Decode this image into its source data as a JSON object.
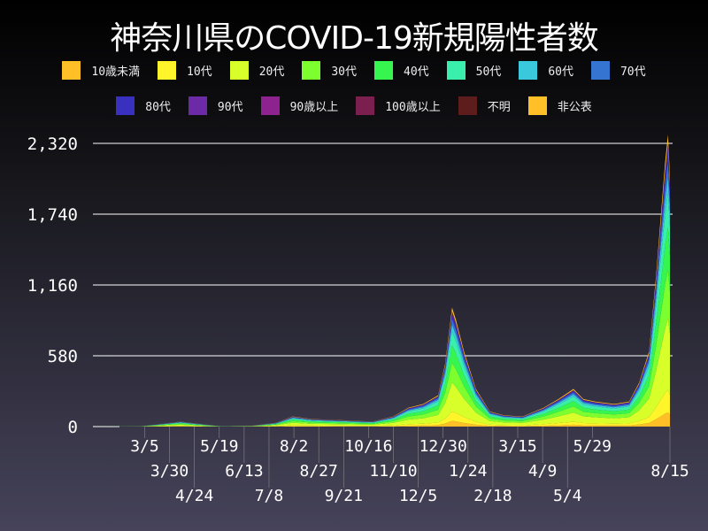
{
  "chart_data": {
    "type": "area",
    "stacked": true,
    "title": "神奈川県のCOVID-19新規陽性者数",
    "xlabel": "",
    "ylabel": "",
    "ylim": [
      0,
      2320
    ],
    "yticks": [
      "0",
      "580",
      "1,160",
      "1,740",
      "2,320"
    ],
    "ytick_values": [
      0,
      580,
      1160,
      1740,
      2320
    ],
    "xticks": [
      "3/5",
      "3/30",
      "4/24",
      "5/19",
      "6/13",
      "7/8",
      "8/2",
      "8/27",
      "9/21",
      "10/16",
      "11/10",
      "12/5",
      "12/30",
      "1/24",
      "2/18",
      "3/15",
      "4/9",
      "5/4",
      "5/29",
      "8/15"
    ],
    "xtick_dates": [
      "2020-03-05",
      "2020-03-30",
      "2020-04-24",
      "2020-05-19",
      "2020-06-13",
      "2020-07-08",
      "2020-08-02",
      "2020-08-27",
      "2020-09-21",
      "2020-10-16",
      "2020-11-10",
      "2020-12-05",
      "2020-12-30",
      "2021-01-24",
      "2021-02-18",
      "2021-03-15",
      "2021-04-09",
      "2021-05-04",
      "2021-05-29",
      "2021-08-15"
    ],
    "grid": "horizontal",
    "legend_position": "top",
    "x": [
      "2020-01-13",
      "2020-03-01",
      "2020-04-10",
      "2020-04-25",
      "2020-05-20",
      "2020-06-20",
      "2020-07-15",
      "2020-08-01",
      "2020-08-20",
      "2020-09-20",
      "2020-10-20",
      "2020-11-10",
      "2020-11-25",
      "2020-12-10",
      "2020-12-25",
      "2021-01-01",
      "2021-01-08",
      "2021-01-12",
      "2021-01-20",
      "2021-02-01",
      "2021-02-15",
      "2021-03-01",
      "2021-03-20",
      "2021-04-10",
      "2021-04-25",
      "2021-05-10",
      "2021-05-20",
      "2021-06-01",
      "2021-06-20",
      "2021-07-05",
      "2021-07-15",
      "2021-07-25",
      "2021-08-01",
      "2021-08-05",
      "2021-08-10",
      "2021-08-13",
      "2021-08-15"
    ],
    "totals": [
      0,
      2,
      40,
      25,
      3,
      5,
      30,
      80,
      60,
      50,
      40,
      80,
      150,
      180,
      250,
      500,
      950,
      850,
      600,
      300,
      120,
      90,
      80,
      150,
      220,
      300,
      220,
      200,
      180,
      200,
      350,
      600,
      1200,
      1600,
      2100,
      2330,
      2000
    ],
    "series": [
      {
        "name": "10歳未満",
        "color": "#ffbf26",
        "share": 0.05
      },
      {
        "name": "10代",
        "color": "#fff52a",
        "share": 0.08
      },
      {
        "name": "20代",
        "color": "#d9ff2a",
        "share": 0.25
      },
      {
        "name": "30代",
        "color": "#7dff2f",
        "share": 0.17
      },
      {
        "name": "40代",
        "color": "#36f54f",
        "share": 0.15
      },
      {
        "name": "50代",
        "color": "#3aeeac",
        "share": 0.12
      },
      {
        "name": "60代",
        "color": "#3ac8dc",
        "share": 0.06
      },
      {
        "name": "70代",
        "color": "#3574d0",
        "share": 0.05
      },
      {
        "name": "80代",
        "color": "#3a30c0",
        "share": 0.04
      },
      {
        "name": "90代",
        "color": "#6c2aa6",
        "share": 0.01
      },
      {
        "name": "90歳以上",
        "color": "#8e2390",
        "share": 0.005
      },
      {
        "name": "100歳以上",
        "color": "#7a1f4e",
        "share": 0.001
      },
      {
        "name": "不明",
        "color": "#5e1d1d",
        "share": 0.01
      },
      {
        "name": "非公表",
        "color": "#ffbf26",
        "share": 0.03
      }
    ]
  }
}
